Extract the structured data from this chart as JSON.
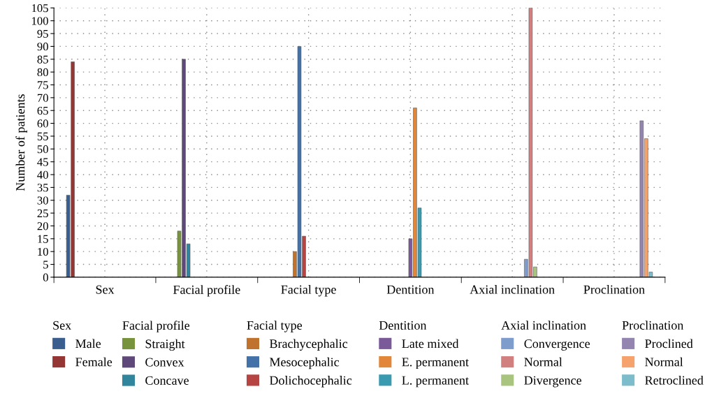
{
  "chart_data": {
    "type": "bar",
    "ylabel": "Number of patients",
    "categories": [
      "Sex",
      "Facial profile",
      "Facial type",
      "Dentition",
      "Axial inclination",
      "Proclination"
    ],
    "ylim": [
      0,
      105
    ],
    "yticks": [
      0,
      5,
      10,
      15,
      20,
      25,
      30,
      35,
      40,
      45,
      50,
      55,
      60,
      65,
      70,
      75,
      80,
      85,
      90,
      95,
      100,
      105
    ],
    "grid": true,
    "legend": "bottom",
    "annotations": [
      "Sex",
      "Facial profile",
      "Facial type",
      "Dentition",
      "Axial inclination",
      "Proclination"
    ],
    "series": [
      {
        "name": "Male",
        "color": "#3a5f8f",
        "values": [
          32,
          null,
          null,
          null,
          null,
          null
        ]
      },
      {
        "name": "Female",
        "color": "#943634",
        "values": [
          84,
          null,
          null,
          null,
          null,
          null
        ]
      },
      {
        "name": "Straight",
        "color": "#77933c",
        "values": [
          null,
          18,
          null,
          null,
          null,
          null
        ]
      },
      {
        "name": "Convex",
        "color": "#5f497a",
        "values": [
          null,
          85,
          null,
          null,
          null,
          null
        ]
      },
      {
        "name": "Concave",
        "color": "#31859c",
        "values": [
          null,
          13,
          null,
          null,
          null,
          null
        ]
      },
      {
        "name": "Brachycephalic",
        "color": "#c0722f",
        "values": [
          null,
          null,
          10,
          null,
          null,
          null
        ]
      },
      {
        "name": "Mesocephalic",
        "color": "#4272a8",
        "values": [
          null,
          null,
          90,
          null,
          null,
          null
        ]
      },
      {
        "name": "Dolichocephalic",
        "color": "#b54443",
        "values": [
          null,
          null,
          16,
          null,
          null,
          null
        ]
      },
      {
        "name": "Late mixed",
        "color": "#7a5a99",
        "values": [
          null,
          null,
          null,
          15,
          null,
          null
        ]
      },
      {
        "name": "E. permanent",
        "color": "#e2873a",
        "values": [
          null,
          null,
          null,
          66,
          null,
          null
        ]
      },
      {
        "name": "L. permanent",
        "color": "#3a9ab0",
        "values": [
          null,
          null,
          null,
          27,
          null,
          null
        ]
      },
      {
        "name": "Convergence",
        "color": "#7e9ccc",
        "values": [
          null,
          null,
          null,
          null,
          7,
          null
        ]
      },
      {
        "name": "Normal",
        "color": "#d17f7f",
        "values": [
          null,
          null,
          null,
          null,
          105,
          null
        ]
      },
      {
        "name": "Divergence",
        "color": "#a9c47f",
        "values": [
          null,
          null,
          null,
          null,
          4,
          null
        ]
      },
      {
        "name": "Proclined",
        "color": "#9384b0",
        "values": [
          null,
          null,
          null,
          null,
          null,
          61
        ]
      },
      {
        "name": "Normal",
        "color": "#f5a26c",
        "values": [
          null,
          null,
          null,
          null,
          null,
          54
        ]
      },
      {
        "name": "Retroclined",
        "color": "#7dbcca",
        "values": [
          null,
          null,
          null,
          null,
          null,
          2
        ]
      }
    ]
  }
}
